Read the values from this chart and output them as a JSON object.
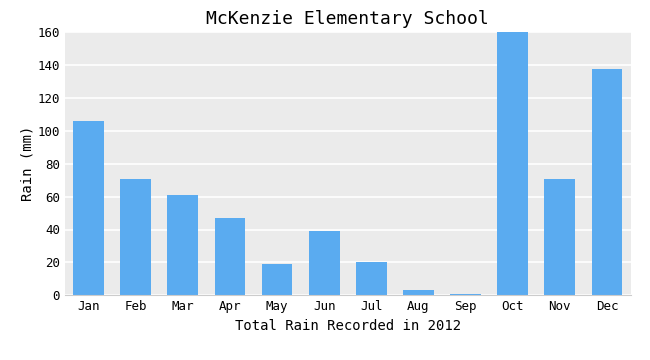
{
  "title": "McKenzie Elementary School",
  "xlabel": "Total Rain Recorded in 2012",
  "ylabel": "Rain (mm)",
  "categories": [
    "Jan",
    "Feb",
    "Mar",
    "Apr",
    "May",
    "Jun",
    "Jul",
    "Aug",
    "Sep",
    "Oct",
    "Nov",
    "Dec"
  ],
  "values": [
    106,
    71,
    61,
    47,
    19,
    39,
    20,
    3,
    1,
    160,
    71,
    138
  ],
  "bar_color": "#5aabf0",
  "background_color": "#ffffff",
  "plot_bg_color": "#ebebeb",
  "ylim": [
    0,
    160
  ],
  "yticks": [
    0,
    20,
    40,
    60,
    80,
    100,
    120,
    140,
    160
  ],
  "title_fontsize": 13,
  "label_fontsize": 10,
  "tick_fontsize": 9
}
